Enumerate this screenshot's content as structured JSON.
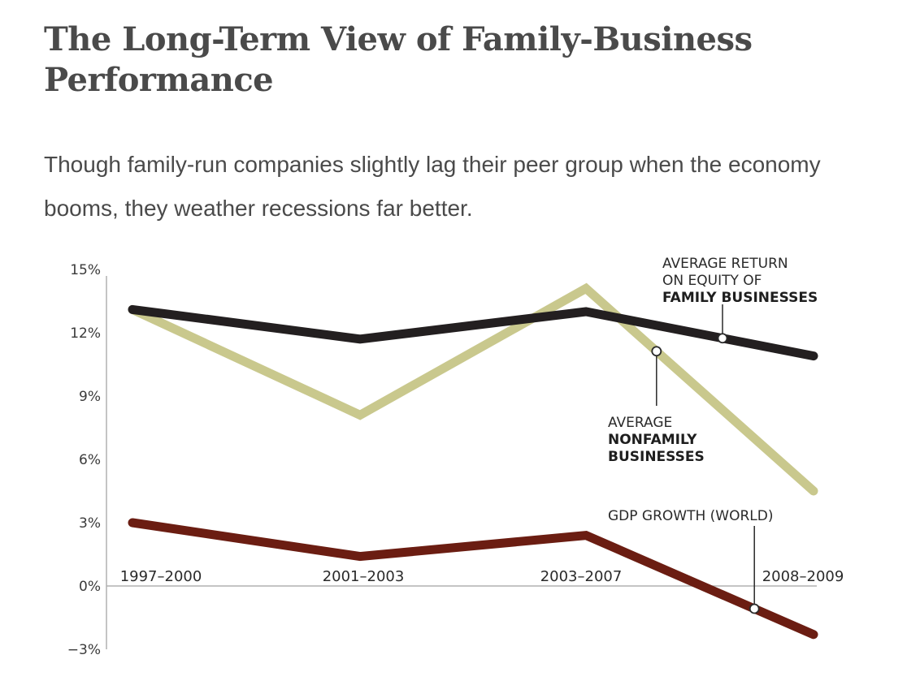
{
  "header": {
    "title": "The Long-Term View of Family-Business Performance",
    "subtitle": "Though family-run companies slightly lag their peer group when the economy booms, they weather recessions far better."
  },
  "colors": {
    "family": "#231f20",
    "nonfamily": "#c9c88d",
    "gdp": "#6b1d12",
    "axis": "#b0b0b0",
    "text": "#4a4a4a"
  },
  "chart_data": {
    "type": "line",
    "title": "The Long-Term View of Family-Business Performance",
    "xlabel": "",
    "ylabel": "",
    "categories": [
      "1997–2000",
      "2001–2003",
      "2003–2007",
      "2008–2009"
    ],
    "y_ticks": [
      "15%",
      "12%",
      "9%",
      "6%",
      "3%",
      "0%",
      "−3%"
    ],
    "ylim": [
      -3,
      15
    ],
    "series": [
      {
        "name": "Average return on equity of family businesses",
        "values": [
          13.1,
          11.7,
          13.0,
          10.9
        ],
        "annotation": {
          "lines": [
            {
              "text": "AVERAGE RETURN",
              "bold": false
            },
            {
              "text": "ON EQUITY OF",
              "bold": false
            },
            {
              "text": "FAMILY BUSINESSES",
              "bold": true
            }
          ],
          "marker_at": 2.6
        }
      },
      {
        "name": "Average nonfamily businesses",
        "values": [
          13.1,
          8.1,
          14.1,
          4.5
        ],
        "annotation": {
          "lines": [
            {
              "text": "AVERAGE",
              "bold": false
            },
            {
              "text": "NONFAMILY",
              "bold": true
            },
            {
              "text": "BUSINESSES",
              "bold": true
            }
          ],
          "marker_at": 2.31
        }
      },
      {
        "name": "GDP growth (world)",
        "values": [
          3.0,
          1.4,
          2.4,
          -2.3
        ],
        "annotation": {
          "lines": [
            {
              "text": "GDP GROWTH (WORLD)",
              "bold": false
            }
          ],
          "marker_at": 2.74
        }
      }
    ]
  }
}
